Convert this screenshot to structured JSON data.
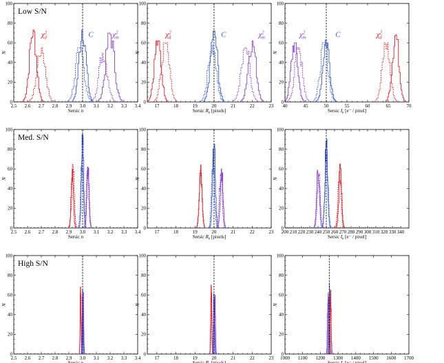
{
  "chart_data": {
    "type": "histogram-grid",
    "rows": 3,
    "cols": 3,
    "colors": {
      "chi2_d": "#e8202a",
      "C": "#3a5fe0",
      "chi2_m": "#8b3fd6",
      "truth_line": "#000000"
    },
    "panels": [
      {
        "row": 0,
        "col": 0,
        "panel_label": "Low S/N",
        "xlabel": "Sersic n",
        "ylabel": "N",
        "xlim": [
          2.5,
          3.4
        ],
        "ylim": [
          0,
          100
        ],
        "xticks": [
          "2.5",
          "2.6",
          "2.7",
          "2.8",
          "2.9",
          "3.0",
          "3.1",
          "3.2",
          "3.3",
          "3.4"
        ],
        "yticks": [
          "0",
          "20",
          "40",
          "60",
          "80",
          "100"
        ],
        "truth": 3.0,
        "series_labels": [
          {
            "key": "chi2_d",
            "text": "χ",
            "sup": "2",
            "sub": "d",
            "x": 2.72,
            "y": 66
          },
          {
            "key": "C",
            "text": "C",
            "x": 3.06,
            "y": 66
          },
          {
            "key": "chi2_m",
            "text": "χ",
            "sup": "2",
            "sub": "m",
            "x": 3.24,
            "y": 66
          }
        ],
        "series": [
          {
            "name": "chi2_d",
            "style": "solid",
            "center": 2.64,
            "sigma": 0.025,
            "peak": 73
          },
          {
            "name": "chi2_d",
            "style": "dashed",
            "center": 2.7,
            "sigma": 0.03,
            "peak": 55
          },
          {
            "name": "C",
            "style": "solid",
            "center": 3.0,
            "sigma": 0.025,
            "peak": 75
          },
          {
            "name": "C",
            "style": "dashed",
            "center": 2.98,
            "sigma": 0.03,
            "peak": 55
          },
          {
            "name": "chi2_m",
            "style": "solid",
            "center": 3.2,
            "sigma": 0.03,
            "peak": 70
          },
          {
            "name": "chi2_m",
            "style": "dashed",
            "center": 3.15,
            "sigma": 0.03,
            "peak": 50
          }
        ]
      },
      {
        "row": 0,
        "col": 1,
        "panel_label": "",
        "xlabel": "Sersic R_e [pixels]",
        "ylabel": "N",
        "xlim": [
          16.5,
          23
        ],
        "ylim": [
          0,
          100
        ],
        "xticks": [
          "17",
          "18",
          "19",
          "20",
          "21",
          "22",
          "23"
        ],
        "xtick_vals": [
          17,
          18,
          19,
          20,
          21,
          22,
          23
        ],
        "yticks": [
          "0",
          "20",
          "40",
          "60",
          "80",
          "100"
        ],
        "truth": 20,
        "series_labels": [
          {
            "key": "chi2_d",
            "text": "χ",
            "sup": "2",
            "sub": "d",
            "x": 17.6,
            "y": 66
          },
          {
            "key": "C",
            "text": "C",
            "x": 20.5,
            "y": 66
          },
          {
            "key": "chi2_m",
            "text": "χ",
            "sup": "2",
            "sub": "m",
            "x": 22.5,
            "y": 66
          }
        ],
        "series": [
          {
            "name": "chi2_d",
            "style": "solid",
            "center": 17.05,
            "sigma": 0.18,
            "peak": 62
          },
          {
            "name": "chi2_d",
            "style": "dashed",
            "center": 17.45,
            "sigma": 0.2,
            "peak": 60
          },
          {
            "name": "C",
            "style": "solid",
            "center": 20.0,
            "sigma": 0.18,
            "peak": 72
          },
          {
            "name": "C",
            "style": "dashed",
            "center": 19.9,
            "sigma": 0.2,
            "peak": 58
          },
          {
            "name": "chi2_m",
            "style": "solid",
            "center": 22.0,
            "sigma": 0.2,
            "peak": 62
          },
          {
            "name": "chi2_m",
            "style": "dashed",
            "center": 21.65,
            "sigma": 0.22,
            "peak": 55
          }
        ]
      },
      {
        "row": 0,
        "col": 2,
        "panel_label": "",
        "xlabel": "Sersic I_e [e⁻ / pixel]",
        "ylabel": "N",
        "xlim": [
          40,
          70
        ],
        "ylim": [
          0,
          100
        ],
        "xticks": [
          "40",
          "45",
          "50",
          "55",
          "60",
          "65",
          "70"
        ],
        "xtick_vals": [
          40,
          45,
          50,
          55,
          60,
          65,
          70
        ],
        "yticks": [
          "0",
          "20",
          "40",
          "60",
          "80",
          "100"
        ],
        "truth": 50,
        "series_labels": [
          {
            "key": "chi2_m",
            "text": "χ",
            "sup": "2",
            "sub": "m",
            "x": 44.3,
            "y": 66
          },
          {
            "key": "C",
            "text": "C",
            "x": 52.8,
            "y": 66
          },
          {
            "key": "chi2_d",
            "text": "χ",
            "sup": "2",
            "sub": "d",
            "x": 62.8,
            "y": 66
          }
        ],
        "series": [
          {
            "name": "chi2_m",
            "style": "solid",
            "center": 42.3,
            "sigma": 0.8,
            "peak": 60
          },
          {
            "name": "chi2_m",
            "style": "dashed",
            "center": 43.3,
            "sigma": 0.9,
            "peak": 55
          },
          {
            "name": "C",
            "style": "solid",
            "center": 50.0,
            "sigma": 0.8,
            "peak": 63
          },
          {
            "name": "C",
            "style": "dashed",
            "center": 49.5,
            "sigma": 0.9,
            "peak": 60
          },
          {
            "name": "chi2_d",
            "style": "solid",
            "center": 66.8,
            "sigma": 0.8,
            "peak": 68
          },
          {
            "name": "chi2_d",
            "style": "dashed",
            "center": 64.5,
            "sigma": 0.9,
            "peak": 60
          }
        ]
      },
      {
        "row": 1,
        "col": 0,
        "panel_label": "Med. S/N",
        "xlabel": "Sersic n",
        "ylabel": "N",
        "xlim": [
          2.5,
          3.4
        ],
        "ylim": [
          0,
          100
        ],
        "xticks": [
          "2.5",
          "2.6",
          "2.7",
          "2.8",
          "2.9",
          "3.0",
          "3.1",
          "3.2",
          "3.3",
          "3.4"
        ],
        "yticks": [
          "0",
          "20",
          "40",
          "60",
          "80",
          "100"
        ],
        "truth": 3.0,
        "series_labels": [],
        "series": [
          {
            "name": "chi2_d",
            "style": "solid",
            "center": 2.925,
            "sigma": 0.008,
            "peak": 60
          },
          {
            "name": "chi2_d",
            "style": "dashed",
            "center": 2.93,
            "sigma": 0.009,
            "peak": 65
          },
          {
            "name": "C",
            "style": "solid",
            "center": 3.0,
            "sigma": 0.008,
            "peak": 95
          },
          {
            "name": "C",
            "style": "dashed",
            "center": 2.995,
            "sigma": 0.009,
            "peak": 75
          },
          {
            "name": "chi2_m",
            "style": "solid",
            "center": 3.04,
            "sigma": 0.008,
            "peak": 62
          },
          {
            "name": "chi2_m",
            "style": "dashed",
            "center": 3.035,
            "sigma": 0.009,
            "peak": 55
          }
        ]
      },
      {
        "row": 1,
        "col": 1,
        "panel_label": "",
        "xlabel": "Sersic R_e [pixels]",
        "ylabel": "N",
        "xlim": [
          16.5,
          23
        ],
        "ylim": [
          0,
          100
        ],
        "xticks": [
          "17",
          "18",
          "19",
          "20",
          "21",
          "22",
          "23"
        ],
        "xtick_vals": [
          17,
          18,
          19,
          20,
          21,
          22,
          23
        ],
        "yticks": [
          "0",
          "20",
          "40",
          "60",
          "80",
          "100"
        ],
        "truth": 20,
        "series_labels": [],
        "series": [
          {
            "name": "chi2_d",
            "style": "solid",
            "center": 19.3,
            "sigma": 0.07,
            "peak": 65
          },
          {
            "name": "chi2_d",
            "style": "dashed",
            "center": 19.3,
            "sigma": 0.075,
            "peak": 60
          },
          {
            "name": "C",
            "style": "solid",
            "center": 20.0,
            "sigma": 0.07,
            "peak": 85
          },
          {
            "name": "C",
            "style": "dashed",
            "center": 19.95,
            "sigma": 0.075,
            "peak": 70
          },
          {
            "name": "chi2_m",
            "style": "solid",
            "center": 20.4,
            "sigma": 0.07,
            "peak": 60
          },
          {
            "name": "chi2_m",
            "style": "dashed",
            "center": 20.35,
            "sigma": 0.075,
            "peak": 55
          }
        ]
      },
      {
        "row": 1,
        "col": 2,
        "panel_label": "",
        "xlabel": "Sersic I_e [e⁻ / pixel]",
        "ylabel": "N",
        "xlim": [
          200,
          350
        ],
        "ylim": [
          0,
          100
        ],
        "xticks": [
          "200",
          "210",
          "220",
          "230",
          "240",
          "250",
          "260",
          "270",
          "280",
          "290",
          "300",
          "310",
          "320",
          "330",
          "340"
        ],
        "xtick_vals": [
          200,
          210,
          220,
          230,
          240,
          250,
          260,
          270,
          280,
          290,
          300,
          310,
          320,
          330,
          340
        ],
        "yticks": [
          "0",
          "20",
          "40",
          "60",
          "80",
          "100"
        ],
        "truth": 250,
        "series_labels": [],
        "series": [
          {
            "name": "chi2_m",
            "style": "solid",
            "center": 240,
            "sigma": 1.6,
            "peak": 62
          },
          {
            "name": "chi2_m",
            "style": "dashed",
            "center": 241,
            "sigma": 1.8,
            "peak": 55
          },
          {
            "name": "C",
            "style": "solid",
            "center": 250,
            "sigma": 1.6,
            "peak": 90
          },
          {
            "name": "C",
            "style": "dashed",
            "center": 250.5,
            "sigma": 1.8,
            "peak": 75
          },
          {
            "name": "chi2_d",
            "style": "solid",
            "center": 267,
            "sigma": 1.6,
            "peak": 65
          },
          {
            "name": "chi2_d",
            "style": "dashed",
            "center": 266,
            "sigma": 1.8,
            "peak": 58
          }
        ]
      },
      {
        "row": 2,
        "col": 0,
        "panel_label": "High S/N",
        "xlabel": "Sersic n",
        "ylabel": "N",
        "xlim": [
          2.5,
          3.4
        ],
        "ylim": [
          0,
          100
        ],
        "xticks": [
          "2.5",
          "2.6",
          "2.7",
          "2.8",
          "2.9",
          "3.0",
          "3.1",
          "3.2",
          "3.3",
          "3.4"
        ],
        "yticks": [
          "0",
          "20",
          "40",
          "60",
          "80",
          "100"
        ],
        "truth": 3.0,
        "series_labels": [],
        "series": [
          {
            "name": "chi2_d",
            "style": "solid",
            "center": 2.985,
            "sigma": 0.003,
            "peak": 68
          },
          {
            "name": "chi2_d",
            "style": "dashed",
            "center": 2.987,
            "sigma": 0.0035,
            "peak": 60
          },
          {
            "name": "C",
            "style": "solid",
            "center": 3.0,
            "sigma": 0.003,
            "peak": 65
          },
          {
            "name": "C",
            "style": "dashed",
            "center": 2.999,
            "sigma": 0.0035,
            "peak": 58
          },
          {
            "name": "chi2_m",
            "style": "solid",
            "center": 3.005,
            "sigma": 0.003,
            "peak": 62
          },
          {
            "name": "chi2_m",
            "style": "dashed",
            "center": 3.004,
            "sigma": 0.0035,
            "peak": 55
          }
        ]
      },
      {
        "row": 2,
        "col": 1,
        "panel_label": "",
        "xlabel": "Sersic R_e [pixels]",
        "ylabel": "N",
        "xlim": [
          16.5,
          23
        ],
        "ylim": [
          0,
          100
        ],
        "xticks": [
          "17",
          "18",
          "19",
          "20",
          "21",
          "22",
          "23"
        ],
        "xtick_vals": [
          17,
          18,
          19,
          20,
          21,
          22,
          23
        ],
        "yticks": [
          "0",
          "20",
          "40",
          "60",
          "80",
          "100"
        ],
        "truth": 20,
        "series_labels": [],
        "series": [
          {
            "name": "chi2_d",
            "style": "solid",
            "center": 19.85,
            "sigma": 0.025,
            "peak": 70
          },
          {
            "name": "chi2_d",
            "style": "dashed",
            "center": 19.87,
            "sigma": 0.028,
            "peak": 62
          },
          {
            "name": "C",
            "style": "solid",
            "center": 20.0,
            "sigma": 0.025,
            "peak": 65
          },
          {
            "name": "C",
            "style": "dashed",
            "center": 19.99,
            "sigma": 0.028,
            "peak": 58
          },
          {
            "name": "chi2_m",
            "style": "solid",
            "center": 20.05,
            "sigma": 0.025,
            "peak": 60
          },
          {
            "name": "chi2_m",
            "style": "dashed",
            "center": 20.04,
            "sigma": 0.028,
            "peak": 55
          }
        ]
      },
      {
        "row": 2,
        "col": 2,
        "panel_label": "",
        "xlabel": "Sersic I_e [e⁻ / pixel]",
        "ylabel": "N",
        "xlim": [
          1000,
          1700
        ],
        "ylim": [
          0,
          100
        ],
        "xticks": [
          "1000",
          "1100",
          "1200",
          "1300",
          "1400",
          "1500",
          "1600",
          "1700"
        ],
        "xtick_vals": [
          1000,
          1100,
          1200,
          1300,
          1400,
          1500,
          1600,
          1700
        ],
        "yticks": [
          "0",
          "20",
          "40",
          "60",
          "80",
          "100"
        ],
        "truth": 1250,
        "series_labels": [],
        "series": [
          {
            "name": "chi2_m",
            "style": "solid",
            "center": 1243,
            "sigma": 3,
            "peak": 62
          },
          {
            "name": "chi2_m",
            "style": "dashed",
            "center": 1245,
            "sigma": 3.5,
            "peak": 55
          },
          {
            "name": "C",
            "style": "solid",
            "center": 1250,
            "sigma": 3,
            "peak": 72
          },
          {
            "name": "C",
            "style": "dashed",
            "center": 1250,
            "sigma": 3.5,
            "peak": 65
          },
          {
            "name": "chi2_d",
            "style": "solid",
            "center": 1258,
            "sigma": 3,
            "peak": 65
          },
          {
            "name": "chi2_d",
            "style": "dashed",
            "center": 1256,
            "sigma": 3.5,
            "peak": 58
          }
        ]
      }
    ]
  }
}
